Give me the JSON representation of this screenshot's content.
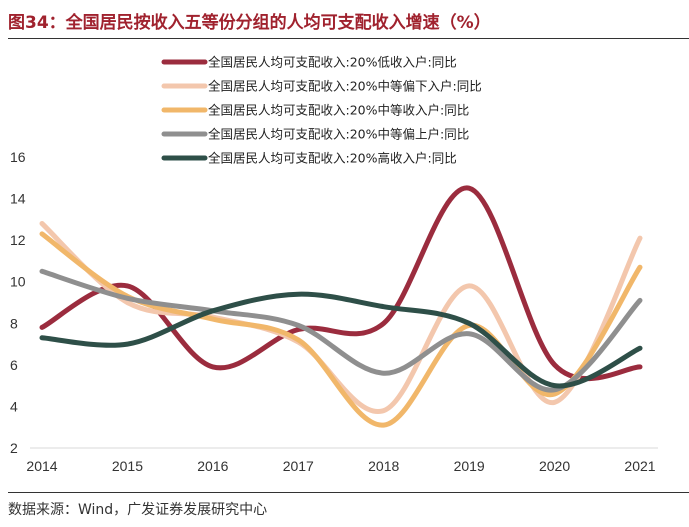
{
  "figure": {
    "title": "图34：全国居民按收入五等份分组的人均可支配收入增速（%）",
    "source": "数据来源：Wind，广发证券发展研究中心"
  },
  "chart_data": {
    "type": "line",
    "title": "图34：全国居民按收入五等份分组的人均可支配收入增速（%）",
    "xlabel": "",
    "ylabel": "",
    "x": [
      "2014",
      "2015",
      "2016",
      "2017",
      "2018",
      "2019",
      "2020",
      "2021"
    ],
    "ylim": [
      2,
      16
    ],
    "yticks": [
      2,
      4,
      6,
      8,
      10,
      12,
      14,
      16
    ],
    "grid": false,
    "legend_position": "top",
    "series": [
      {
        "name": "全国居民人均可支配收入:20%低收入户:同比",
        "color": "#9b2c3e",
        "values": [
          7.8,
          9.8,
          5.9,
          7.7,
          8.0,
          14.5,
          6.0,
          5.9
        ]
      },
      {
        "name": "全国居民人均可支配收入:20%中等偏下入户:同比",
        "color": "#f3c7ad",
        "values": [
          12.8,
          9.0,
          8.3,
          7.1,
          3.8,
          9.8,
          4.2,
          12.1
        ]
      },
      {
        "name": "全国居民人均可支配收入:20%中等收入户:同比",
        "color": "#f1b76a",
        "values": [
          12.3,
          9.3,
          8.2,
          7.2,
          3.1,
          7.9,
          4.6,
          10.7
        ]
      },
      {
        "name": "全国居民人均可支配收入:20%中等偏上户:同比",
        "color": "#8f8f8f",
        "values": [
          10.5,
          9.2,
          8.6,
          7.9,
          5.6,
          7.5,
          4.8,
          9.1
        ]
      },
      {
        "name": "全国居民人均可支配收入:20%高收入户:同比",
        "color": "#2e4f48",
        "values": [
          7.3,
          7.0,
          8.6,
          9.4,
          8.8,
          8.0,
          5.0,
          6.8
        ]
      }
    ]
  }
}
